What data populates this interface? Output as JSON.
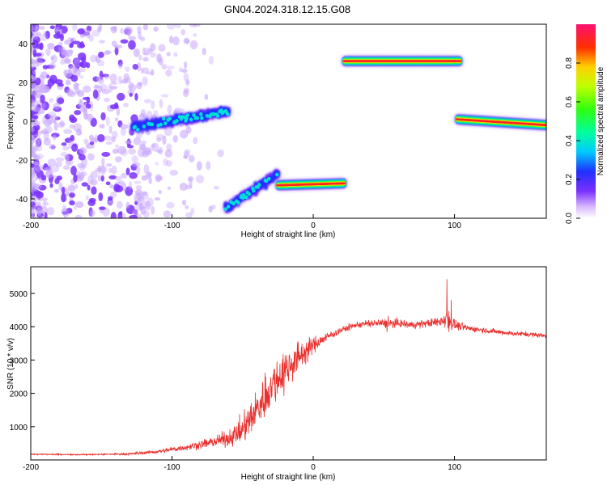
{
  "title": "GN04.2024.318.12.15.G08",
  "chart_data": [
    {
      "type": "heatmap",
      "xlabel": "Height of straight line (km)",
      "ylabel": "Frequency (Hz)",
      "xlim": [
        -200,
        165
      ],
      "ylim": [
        -50,
        50
      ],
      "xticks": [
        -200,
        -100,
        0,
        100
      ],
      "yticks": [
        -40,
        -20,
        0,
        20,
        40
      ],
      "colorbar": {
        "label": "Normalized spectral amplitude",
        "range": [
          0,
          1
        ],
        "ticks": [
          0.0,
          0.2,
          0.4,
          0.6,
          0.8
        ]
      },
      "segments": [
        {
          "x": [
            -128,
            -60
          ],
          "y": [
            -3,
            5
          ],
          "peak": 0.35
        },
        {
          "x": [
            -62,
            -25
          ],
          "y": [
            -45,
            -27
          ],
          "peak": 0.35
        },
        {
          "x": [
            -25,
            22
          ],
          "y": [
            -33,
            -32
          ],
          "peak": 0.9
        },
        {
          "x": [
            22,
            104
          ],
          "y": [
            31,
            31
          ],
          "peak": 0.95
        },
        {
          "x": [
            102,
            165
          ],
          "y": [
            1,
            -2
          ],
          "peak": 0.95
        }
      ]
    },
    {
      "type": "line",
      "xlabel": "Height of straight line (km)",
      "ylabel": "SNR (10 * v/v)",
      "xlim": [
        -200,
        165
      ],
      "ylim": [
        0,
        5800
      ],
      "xticks": [
        -200,
        -100,
        0,
        100
      ],
      "yticks": [
        1000,
        2000,
        3000,
        4000,
        5000
      ],
      "color": "#e8302e",
      "series": [
        {
          "x": [
            -200,
            -160,
            -130,
            -110,
            -90,
            -75,
            -60,
            -50,
            -40,
            -30,
            -20,
            -10,
            0,
            10,
            20,
            30,
            40,
            50,
            60,
            70,
            80,
            90,
            95,
            100,
            110,
            120,
            130,
            140,
            150,
            160,
            165
          ],
          "values": [
            170,
            160,
            180,
            250,
            380,
            500,
            650,
            900,
            1500,
            2200,
            2700,
            3100,
            3450,
            3700,
            3900,
            4050,
            4100,
            4100,
            4100,
            4050,
            4100,
            4150,
            4300,
            4050,
            3950,
            3900,
            3850,
            3800,
            3780,
            3750,
            3720
          ],
          "noise": [
            20,
            20,
            40,
            60,
            100,
            150,
            250,
            450,
            650,
            750,
            650,
            500,
            250,
            150,
            100,
            100,
            120,
            150,
            130,
            120,
            120,
            150,
            450,
            150,
            100,
            90,
            80,
            80,
            80,
            80,
            80
          ]
        }
      ]
    }
  ]
}
